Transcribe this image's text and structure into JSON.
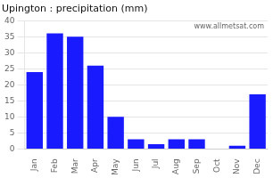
{
  "chart_data": {
    "type": "bar",
    "title": "Upington : precipitation (mm)",
    "categories": [
      "Jan",
      "Feb",
      "Mar",
      "Apr",
      "May",
      "Jun",
      "Jul",
      "Aug",
      "Sep",
      "Oct",
      "Nov",
      "Dec"
    ],
    "values": [
      24,
      36,
      35,
      26,
      10,
      3,
      1.5,
      3,
      3,
      0,
      1,
      17
    ],
    "color": "#1a1aff",
    "ylim": [
      0,
      40
    ],
    "yticks": [
      0,
      5,
      10,
      15,
      20,
      25,
      30,
      35,
      40
    ],
    "grid": true,
    "annotations": [
      "www.allmetsat.com"
    ]
  }
}
